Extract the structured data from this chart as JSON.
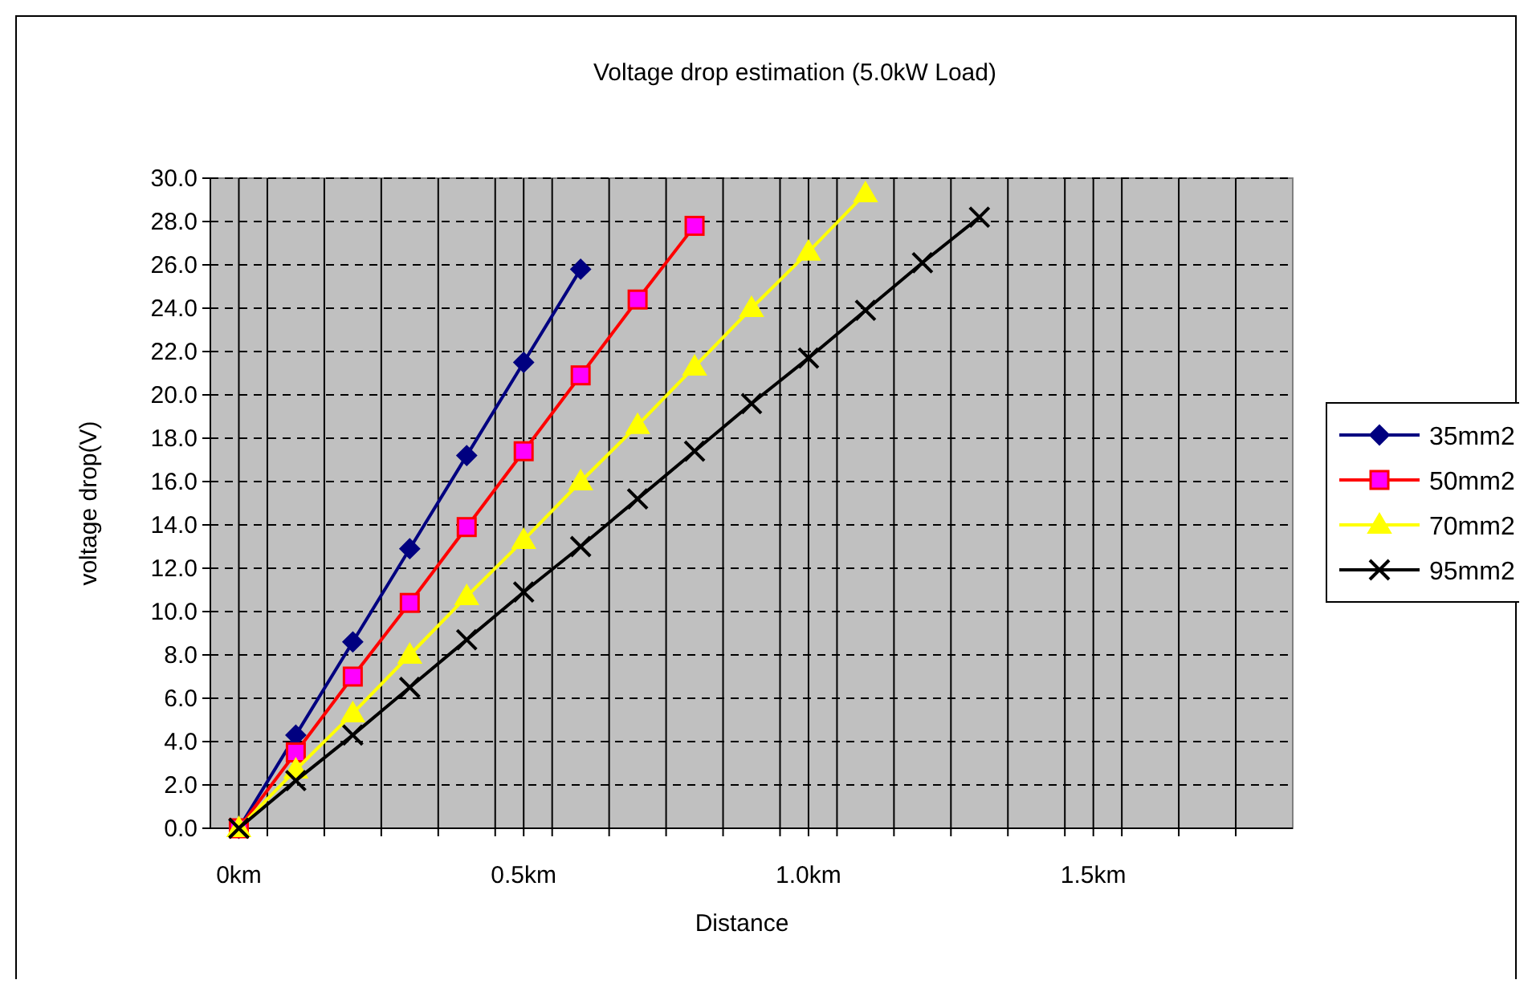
{
  "chart_data": {
    "type": "line",
    "title": "Voltage drop estimation (5.0kW Load)",
    "xlabel": "Distance",
    "ylabel": "voltage drop(V)",
    "xlim": [
      -0.05,
      1.85
    ],
    "xticks": [
      {
        "value": 0,
        "label": "0km"
      },
      {
        "value": 0.5,
        "label": "0.5km"
      },
      {
        "value": 1.0,
        "label": "1.0km"
      },
      {
        "value": 1.5,
        "label": "1.5km"
      },
      {
        "value": 0.05,
        "label": null
      },
      {
        "value": 0.15,
        "label": null
      },
      {
        "value": 0.25,
        "label": null
      },
      {
        "value": 0.35,
        "label": null
      },
      {
        "value": 0.45,
        "label": null
      },
      {
        "value": 0.55,
        "label": null
      },
      {
        "value": 0.65,
        "label": null
      },
      {
        "value": 0.75,
        "label": null
      },
      {
        "value": 0.85,
        "label": null
      },
      {
        "value": 0.95,
        "label": null
      },
      {
        "value": 1.05,
        "label": null
      },
      {
        "value": 1.15,
        "label": null
      },
      {
        "value": 1.25,
        "label": null
      },
      {
        "value": 1.35,
        "label": null
      },
      {
        "value": 1.45,
        "label": null
      },
      {
        "value": 1.55,
        "label": null
      },
      {
        "value": 1.65,
        "label": null
      },
      {
        "value": 1.75,
        "label": null
      }
    ],
    "ylim": [
      0,
      30
    ],
    "yticks": [
      {
        "value": 0,
        "label": "0.0"
      },
      {
        "value": 2,
        "label": "2.0"
      },
      {
        "value": 4,
        "label": "4.0"
      },
      {
        "value": 6,
        "label": "6.0"
      },
      {
        "value": 8,
        "label": "8.0"
      },
      {
        "value": 10,
        "label": "10.0"
      },
      {
        "value": 12,
        "label": "12.0"
      },
      {
        "value": 14,
        "label": "14.0"
      },
      {
        "value": 16,
        "label": "16.0"
      },
      {
        "value": 18,
        "label": "18.0"
      },
      {
        "value": 20,
        "label": "20.0"
      },
      {
        "value": 22,
        "label": "22.0"
      },
      {
        "value": 24,
        "label": "24.0"
      },
      {
        "value": 26,
        "label": "26.0"
      },
      {
        "value": 28,
        "label": "28.0"
      },
      {
        "value": 30,
        "label": "30.0"
      }
    ],
    "grid": true,
    "legend": "right",
    "line_style": "solid",
    "series": [
      {
        "name": "35mm2",
        "color": "#000080",
        "marker": "diamond",
        "x": [
          0,
          0.1,
          0.2,
          0.3,
          0.4,
          0.5,
          0.6
        ],
        "values": [
          0,
          4.3,
          8.6,
          12.9,
          17.2,
          21.5,
          25.8
        ]
      },
      {
        "name": "50mm2",
        "color": "#ff0000",
        "marker": "square",
        "x": [
          0,
          0.1,
          0.2,
          0.3,
          0.4,
          0.5,
          0.6,
          0.7,
          0.8
        ],
        "values": [
          0,
          3.5,
          7.0,
          10.4,
          13.9,
          17.4,
          20.9,
          24.4,
          27.8
        ]
      },
      {
        "name": "70mm2",
        "color": "#ffff00",
        "marker": "triangle",
        "x": [
          0,
          0.1,
          0.2,
          0.3,
          0.4,
          0.5,
          0.6,
          0.7,
          0.8,
          0.9,
          1.0,
          1.1
        ],
        "values": [
          0,
          2.7,
          5.3,
          8.0,
          10.7,
          13.3,
          16.0,
          18.6,
          21.3,
          24.0,
          26.6,
          29.3
        ]
      },
      {
        "name": "95mm2",
        "color": "#000000",
        "marker": "cross",
        "x": [
          0,
          0.1,
          0.2,
          0.3,
          0.4,
          0.5,
          0.6,
          0.7,
          0.8,
          0.9,
          1.0,
          1.1,
          1.2,
          1.3
        ],
        "values": [
          0,
          2.2,
          4.3,
          6.5,
          8.7,
          10.9,
          13.0,
          15.2,
          17.4,
          19.6,
          21.7,
          23.9,
          26.1,
          28.2
        ]
      }
    ]
  }
}
